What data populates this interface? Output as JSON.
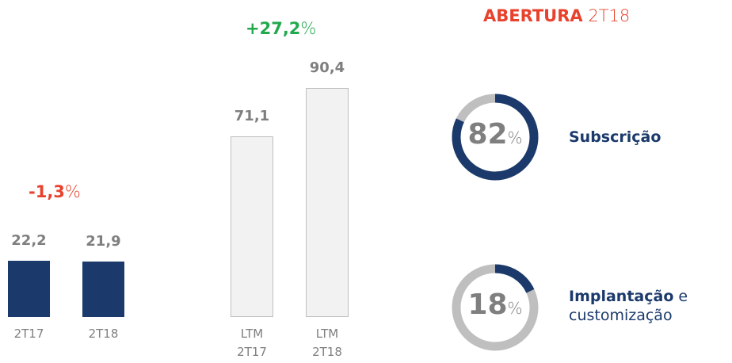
{
  "chart_data": [
    {
      "type": "bar",
      "categories": [
        "2T17",
        "2T18"
      ],
      "values": [
        22.2,
        21.9
      ],
      "value_labels": [
        "22,2",
        "21,9"
      ],
      "color": "#1b3a6b",
      "annotation": "-1,3%",
      "annotation_color": "#e8412c"
    },
    {
      "type": "bar",
      "categories": [
        "LTM 2T17",
        "LTM 2T18"
      ],
      "values": [
        71.1,
        90.4
      ],
      "value_labels": [
        "71,1",
        "90,4"
      ],
      "color": "#f2f2f2",
      "edge_color": "#bfbfbf",
      "annotation": "+27,2%",
      "annotation_color": "#22a94e"
    },
    {
      "type": "donut",
      "title": "ABERTURA 2T18",
      "title_color": "#e8412c",
      "categories": [
        "Subscrição",
        "Implantação e customização"
      ],
      "values": [
        82,
        18
      ],
      "value_labels": [
        "82%",
        "18%"
      ],
      "color": "#1b3a6b",
      "track_color": "#bfbfbf"
    }
  ]
}
